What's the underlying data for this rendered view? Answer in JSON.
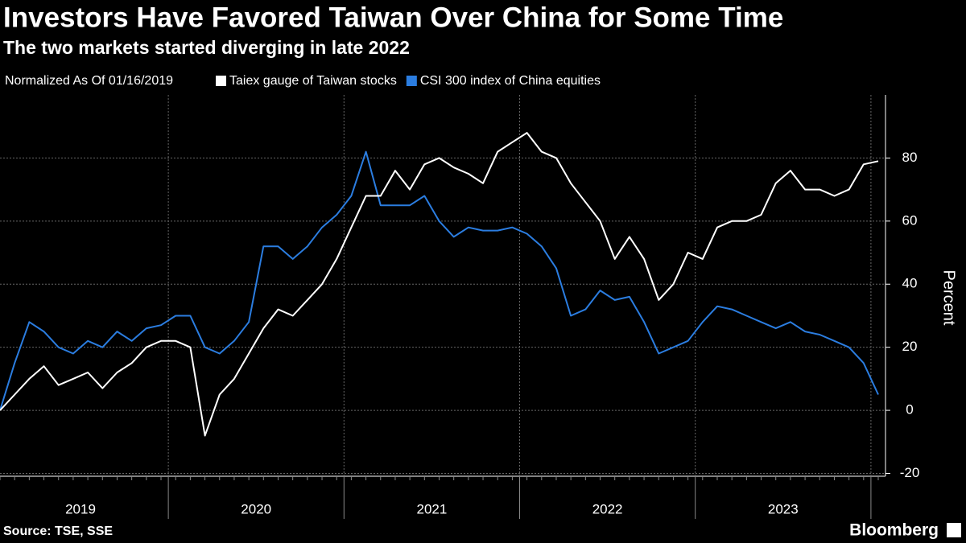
{
  "chart_data": {
    "type": "line",
    "title": "Investors Have Favored Taiwan Over China for Some Time",
    "subtitle": "The two markets started diverging in late 2022",
    "legend_title": "Normalized As Of 01/16/2019",
    "y_label": "Percent",
    "source": "Source: TSE, SSE",
    "brand": "Bloomberg",
    "categories": [
      null,
      null,
      null,
      null,
      null,
      null,
      "2019",
      null,
      null,
      null,
      null,
      null,
      null,
      null,
      null,
      null,
      null,
      null,
      "2020",
      null,
      null,
      null,
      null,
      null,
      null,
      null,
      null,
      null,
      null,
      null,
      "2021",
      null,
      null,
      null,
      null,
      null,
      null,
      null,
      null,
      null,
      null,
      null,
      "2022",
      null,
      null,
      null,
      null,
      null,
      null,
      null,
      null,
      null,
      null,
      null,
      "2023",
      null,
      null,
      null,
      null,
      null,
      null
    ],
    "series": [
      {
        "name": "Taiex gauge of Taiwan stocks",
        "color": "#ffffff",
        "values": [
          0,
          5,
          10,
          14,
          8,
          10,
          12,
          7,
          12,
          15,
          20,
          22,
          22,
          20,
          -8,
          5,
          10,
          18,
          26,
          32,
          30,
          35,
          40,
          48,
          58,
          68,
          68,
          76,
          70,
          78,
          80,
          77,
          75,
          72,
          82,
          85,
          88,
          82,
          80,
          72,
          66,
          60,
          48,
          55,
          48,
          35,
          40,
          50,
          48,
          58,
          60,
          60,
          62,
          72,
          76,
          70,
          70,
          68,
          70,
          78,
          79
        ]
      },
      {
        "name": "CSI 300 index of China equities",
        "color": "#2b7de0",
        "values": [
          0,
          15,
          28,
          25,
          20,
          18,
          22,
          20,
          25,
          22,
          26,
          27,
          30,
          30,
          20,
          18,
          22,
          28,
          52,
          52,
          48,
          52,
          58,
          62,
          68,
          82,
          65,
          65,
          65,
          68,
          60,
          55,
          58,
          57,
          57,
          58,
          56,
          52,
          45,
          30,
          32,
          38,
          35,
          36,
          28,
          18,
          20,
          22,
          28,
          33,
          32,
          30,
          28,
          26,
          28,
          25,
          24,
          22,
          20,
          15,
          5
        ]
      }
    ],
    "ylim": [
      -20,
      100
    ],
    "yticks": [
      -20,
      0,
      20,
      40,
      60,
      80
    ],
    "grid": true,
    "y_axis_side": "right"
  }
}
